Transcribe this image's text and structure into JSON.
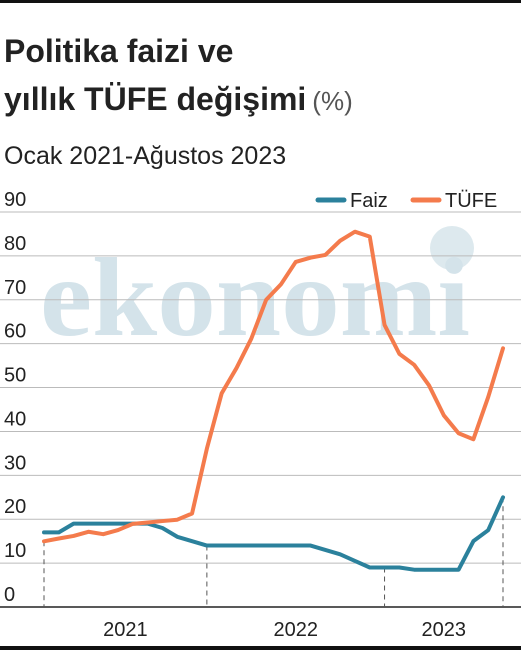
{
  "chart_data": {
    "type": "line",
    "title": [
      "Politika faizi ve",
      "yıllık TÜFE değişimi"
    ],
    "title_unit": "(%)",
    "subtitle": "Ocak 2021-Ağustos 2023",
    "watermark": "ekonomi",
    "categories": [
      "2021",
      "2021",
      "2021",
      "2021",
      "2021",
      "2021",
      "2021",
      "2021",
      "2021",
      "2021",
      "2021",
      "2021",
      "2022",
      "2022",
      "2022",
      "2022",
      "2022",
      "2022",
      "2022",
      "2022",
      "2022",
      "2022",
      "2022",
      "2022",
      "2023",
      "2023",
      "2023",
      "2023",
      "2023",
      "2023",
      "2023",
      "2023"
    ],
    "series": [
      {
        "name": "Faiz",
        "color": "#2b819c",
        "values": [
          17,
          17,
          19,
          19,
          19,
          19,
          19,
          19,
          18,
          16,
          15,
          14,
          14,
          14,
          14,
          14,
          14,
          14,
          14,
          13,
          12,
          10.5,
          9,
          9,
          9,
          8.5,
          8.5,
          8.5,
          8.5,
          15,
          17.5,
          25
        ]
      },
      {
        "name": "TÜFE",
        "color": "#f47b4c",
        "values": [
          14.97,
          15.61,
          16.19,
          17.14,
          16.59,
          17.53,
          18.95,
          19.25,
          19.58,
          19.89,
          21.31,
          36.08,
          48.69,
          54.44,
          61.14,
          69.97,
          73.5,
          78.62,
          79.6,
          80.21,
          83.45,
          85.51,
          84.39,
          64.27,
          57.68,
          55.18,
          50.51,
          43.68,
          39.59,
          38.21,
          47.83,
          58.94
        ]
      }
    ],
    "ylim": [
      0,
      90
    ],
    "yticks": [
      0,
      10,
      20,
      30,
      40,
      50,
      60,
      70,
      80,
      90
    ],
    "grid": true,
    "legend": "top-right"
  }
}
